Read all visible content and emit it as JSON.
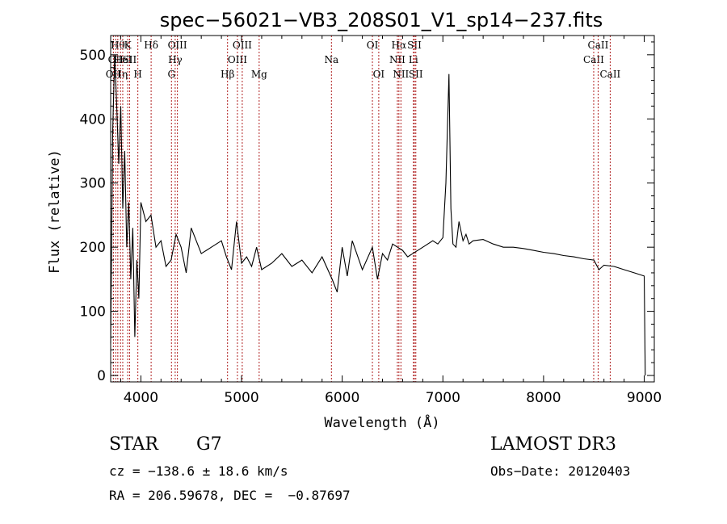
{
  "chart_data": {
    "type": "line",
    "title": "spec−56021−VB3_208S01_V1_sp14−237.fits",
    "xlabel": "Wavelength (Å)",
    "ylabel": "Flux (relative)",
    "xlim": [
      3700,
      9100
    ],
    "ylim": [
      -10,
      530
    ],
    "xticks": [
      4000,
      5000,
      6000,
      7000,
      8000,
      9000
    ],
    "yticks": [
      0,
      100,
      200,
      300,
      400,
      500
    ],
    "spectrum": {
      "x": [
        3700,
        3720,
        3740,
        3760,
        3780,
        3800,
        3820,
        3840,
        3860,
        3880,
        3900,
        3920,
        3940,
        3960,
        3980,
        4000,
        4050,
        4100,
        4150,
        4200,
        4250,
        4300,
        4350,
        4400,
        4450,
        4500,
        4600,
        4700,
        4800,
        4850,
        4900,
        4950,
        5000,
        5050,
        5100,
        5150,
        5200,
        5300,
        5400,
        5500,
        5600,
        5700,
        5800,
        5900,
        5950,
        6000,
        6050,
        6100,
        6200,
        6300,
        6350,
        6400,
        6450,
        6500,
        6550,
        6600,
        6650,
        6700,
        6800,
        6900,
        6950,
        7000,
        7030,
        7060,
        7080,
        7100,
        7130,
        7160,
        7200,
        7230,
        7260,
        7300,
        7400,
        7500,
        7600,
        7700,
        7800,
        7900,
        8000,
        8100,
        8200,
        8300,
        8400,
        8500,
        8550,
        8600,
        8700,
        8800,
        8900,
        9000,
        9010
      ],
      "y": [
        50,
        380,
        500,
        420,
        330,
        420,
        260,
        350,
        200,
        270,
        150,
        230,
        60,
        180,
        120,
        270,
        240,
        250,
        200,
        210,
        170,
        180,
        220,
        200,
        160,
        230,
        190,
        200,
        210,
        185,
        165,
        240,
        175,
        185,
        170,
        200,
        165,
        175,
        190,
        170,
        180,
        160,
        185,
        150,
        130,
        200,
        155,
        210,
        165,
        200,
        150,
        190,
        180,
        205,
        200,
        195,
        185,
        190,
        200,
        210,
        205,
        215,
        300,
        470,
        260,
        205,
        200,
        240,
        210,
        220,
        205,
        210,
        212,
        205,
        200,
        200,
        198,
        195,
        192,
        190,
        187,
        185,
        182,
        180,
        165,
        172,
        170,
        165,
        160,
        155,
        0
      ]
    },
    "lines": [
      {
        "wl": 3727,
        "label": "OII",
        "row": 2
      },
      {
        "wl": 3750,
        "label": "OII",
        "row": 1
      },
      {
        "wl": 3771,
        "label": "Hθ",
        "row": 0
      },
      {
        "wl": 3798,
        "label": "Hη",
        "row": 2
      },
      {
        "wl": 3820,
        "label": "HeI",
        "row": 1
      },
      {
        "wl": 3869,
        "label": "K",
        "row": 0
      },
      {
        "wl": 3888,
        "label": "SII",
        "row": 1
      },
      {
        "wl": 3970,
        "label": "H",
        "row": 2
      },
      {
        "wl": 4102,
        "label": "Hδ",
        "row": 0
      },
      {
        "wl": 4304,
        "label": "G",
        "row": 2
      },
      {
        "wl": 4341,
        "label": "Hγ",
        "row": 1
      },
      {
        "wl": 4363,
        "label": "OIII",
        "row": 0
      },
      {
        "wl": 4861,
        "label": "Hβ",
        "row": 2
      },
      {
        "wl": 4959,
        "label": "OIII",
        "row": 1
      },
      {
        "wl": 5007,
        "label": "OIII",
        "row": 0
      },
      {
        "wl": 5175,
        "label": "Mg",
        "row": 2
      },
      {
        "wl": 5893,
        "label": "Na",
        "row": 1
      },
      {
        "wl": 6300,
        "label": "OI",
        "row": 0
      },
      {
        "wl": 6363,
        "label": "OI",
        "row": 2
      },
      {
        "wl": 6548,
        "label": "NII",
        "row": 1
      },
      {
        "wl": 6563,
        "label": "Hα",
        "row": 0
      },
      {
        "wl": 6583,
        "label": "NII",
        "row": 2
      },
      {
        "wl": 6707,
        "label": "Li",
        "row": 1
      },
      {
        "wl": 6717,
        "label": "SII",
        "row": 0
      },
      {
        "wl": 6731,
        "label": "SII",
        "row": 2
      },
      {
        "wl": 8498,
        "label": "CaII",
        "row": 1
      },
      {
        "wl": 8542,
        "label": "CaII",
        "row": 0
      },
      {
        "wl": 8662,
        "label": "CaII",
        "row": 2
      }
    ]
  },
  "info": {
    "class": "STAR",
    "subclass": "G7",
    "survey": "LAMOST DR3",
    "cz": "cz = −138.6 ± 18.6 km/s",
    "obs_date": "Obs−Date: 20120403",
    "coords": "RA = 206.59678, DEC =  −0.87697"
  },
  "colors": {
    "line_marker": "#b02020",
    "spectrum": "#000000"
  }
}
